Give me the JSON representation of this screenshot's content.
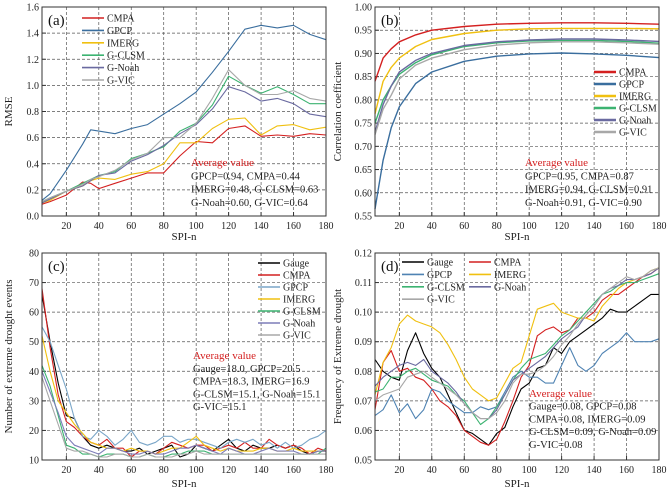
{
  "colors": {
    "Gauge": "#000000",
    "CMPA": "#d42020",
    "GPCP": "#3a6e9e",
    "IMERG": "#f0c010",
    "G-CLSM": "#3cb371",
    "G-Noah": "#6a6aa0",
    "G-VIC": "#a8a8a8",
    "annotation_title": "#d42020"
  },
  "chart_data": [
    {
      "id": "a",
      "type": "line",
      "panel_label": "(a)",
      "xlabel": "SPI-n",
      "ylabel": "RMSE",
      "xlim": [
        5,
        180
      ],
      "ylim": [
        0,
        1.6
      ],
      "xticks": [
        "20",
        "40",
        "60",
        "80",
        "100",
        "120",
        "140",
        "160",
        "180"
      ],
      "yticks": [
        "0.0",
        "0.2",
        "0.4",
        "0.6",
        "0.8",
        "1.0",
        "1.2",
        "1.4",
        "1.6"
      ],
      "grid": true,
      "legend": "top-left",
      "annotation": {
        "title": "Average value",
        "lines": [
          "GPCP=0.94, CMPA=0.44",
          "IMERG=0.48, G-CLSM=0.63",
          "G-Noah=0.60, G-VIC=0.64"
        ]
      },
      "x": [
        5,
        10,
        20,
        30,
        35,
        40,
        50,
        60,
        70,
        80,
        90,
        100,
        110,
        120,
        130,
        140,
        150,
        160,
        170,
        180
      ],
      "series": [
        {
          "name": "CMPA",
          "values": [
            0.09,
            0.11,
            0.16,
            0.26,
            0.25,
            0.21,
            0.25,
            0.29,
            0.33,
            0.33,
            0.46,
            0.57,
            0.56,
            0.67,
            0.69,
            0.61,
            0.62,
            0.61,
            0.63,
            0.62
          ]
        },
        {
          "name": "GPCP",
          "values": [
            0.12,
            0.17,
            0.35,
            0.55,
            0.66,
            0.65,
            0.63,
            0.67,
            0.7,
            0.78,
            0.86,
            0.95,
            1.1,
            1.26,
            1.43,
            1.46,
            1.44,
            1.46,
            1.39,
            1.35
          ]
        },
        {
          "name": "IMERG",
          "values": [
            0.1,
            0.12,
            0.19,
            0.23,
            0.27,
            0.29,
            0.28,
            0.32,
            0.34,
            0.4,
            0.56,
            0.56,
            0.67,
            0.74,
            0.75,
            0.62,
            0.69,
            0.7,
            0.66,
            0.68
          ]
        },
        {
          "name": "G-CLSM",
          "values": [
            0.11,
            0.14,
            0.19,
            0.25,
            0.28,
            0.31,
            0.34,
            0.44,
            0.48,
            0.53,
            0.65,
            0.71,
            0.85,
            1.07,
            1.0,
            0.94,
            0.99,
            0.93,
            0.86,
            0.86
          ]
        },
        {
          "name": "G-Noah",
          "values": [
            0.1,
            0.13,
            0.19,
            0.23,
            0.27,
            0.31,
            0.33,
            0.42,
            0.47,
            0.54,
            0.63,
            0.7,
            0.82,
            0.99,
            0.95,
            0.88,
            0.9,
            0.86,
            0.78,
            0.76
          ]
        },
        {
          "name": "G-VIC",
          "values": [
            0.11,
            0.14,
            0.19,
            0.24,
            0.28,
            0.3,
            0.35,
            0.43,
            0.48,
            0.6,
            0.6,
            0.71,
            0.9,
            1.12,
            1.0,
            0.93,
            0.93,
            0.96,
            0.9,
            0.88
          ]
        }
      ]
    },
    {
      "id": "b",
      "type": "line",
      "panel_label": "(b)",
      "xlabel": "SPI-n",
      "ylabel": "Correlation coefficient",
      "xlim": [
        5,
        180
      ],
      "ylim": [
        0.55,
        1.0
      ],
      "xticks": [
        "20",
        "40",
        "60",
        "80",
        "100",
        "120",
        "140",
        "160",
        "180"
      ],
      "yticks": [
        "0.55",
        "0.60",
        "0.65",
        "0.70",
        "0.75",
        "0.80",
        "0.85",
        "0.90",
        "0.95",
        "1.00"
      ],
      "grid": true,
      "legend": "right",
      "annotation": {
        "title": "Average value",
        "lines": [
          "GPCP=0.95, CMPA=0.87",
          "IMERG=0.94, G-CLSM=0.91",
          "G-Noah=0.91, G-VIC=0.90"
        ]
      },
      "x": [
        5,
        10,
        15,
        20,
        30,
        40,
        60,
        80,
        100,
        120,
        140,
        160,
        180
      ],
      "series": [
        {
          "name": "CMPA",
          "values": [
            0.84,
            0.89,
            0.91,
            0.925,
            0.94,
            0.95,
            0.958,
            0.963,
            0.965,
            0.966,
            0.966,
            0.965,
            0.963
          ]
        },
        {
          "name": "GPCP",
          "values": [
            0.565,
            0.67,
            0.74,
            0.785,
            0.835,
            0.86,
            0.883,
            0.894,
            0.899,
            0.901,
            0.899,
            0.896,
            0.891
          ]
        },
        {
          "name": "IMERG",
          "values": [
            0.77,
            0.84,
            0.87,
            0.89,
            0.915,
            0.93,
            0.943,
            0.95,
            0.953,
            0.954,
            0.954,
            0.954,
            0.953
          ]
        },
        {
          "name": "G-CLSM",
          "values": [
            0.75,
            0.8,
            0.83,
            0.855,
            0.88,
            0.897,
            0.915,
            0.923,
            0.927,
            0.928,
            0.928,
            0.926,
            0.922
          ]
        },
        {
          "name": "G-Noah",
          "values": [
            0.73,
            0.79,
            0.83,
            0.86,
            0.885,
            0.9,
            0.917,
            0.925,
            0.929,
            0.931,
            0.931,
            0.929,
            0.926
          ]
        },
        {
          "name": "G-VIC",
          "values": [
            0.725,
            0.78,
            0.81,
            0.845,
            0.875,
            0.89,
            0.908,
            0.918,
            0.923,
            0.925,
            0.925,
            0.923,
            0.92
          ]
        }
      ]
    },
    {
      "id": "c",
      "type": "line",
      "panel_label": "(c)",
      "xlabel": "SPI-n",
      "ylabel": "Number of extreme drought events",
      "xlim": [
        5,
        180
      ],
      "ylim": [
        10,
        80
      ],
      "xticks": [
        "20",
        "40",
        "60",
        "80",
        "100",
        "120",
        "140",
        "160",
        "180"
      ],
      "yticks": [
        "10",
        "20",
        "30",
        "40",
        "50",
        "60",
        "70",
        "80"
      ],
      "grid": true,
      "legend": "top-right",
      "annotation": {
        "title": "Average value",
        "lines": [
          "Gauge=18.0, GPCP=20.5",
          "CMPA=18.3, IMERG=16.9",
          "G-CLSM=15.1, G-Noah=15.1",
          "G-VIC=15.1"
        ]
      },
      "x": [
        5,
        10,
        15,
        20,
        25,
        30,
        35,
        40,
        45,
        50,
        55,
        60,
        65,
        70,
        75,
        80,
        85,
        90,
        95,
        100,
        105,
        110,
        115,
        120,
        125,
        130,
        135,
        140,
        145,
        150,
        155,
        160,
        165,
        170,
        175,
        180
      ],
      "series": [
        {
          "name": "Gauge",
          "values": [
            66,
            50,
            36,
            25,
            24,
            18,
            15,
            14,
            15,
            14,
            13,
            13,
            14,
            12,
            13,
            14,
            15,
            11,
            12,
            15,
            14,
            13,
            15,
            17,
            14,
            13,
            15,
            14,
            14,
            15,
            14,
            15,
            13,
            12,
            13,
            13
          ]
        },
        {
          "name": "CMPA",
          "values": [
            68,
            48,
            32,
            23,
            21,
            18,
            16,
            15,
            17,
            14,
            14,
            11,
            13,
            13,
            12,
            14,
            16,
            15,
            14,
            15,
            15,
            13,
            14,
            15,
            14,
            16,
            14,
            14,
            17,
            15,
            14,
            15,
            14,
            12,
            14,
            13
          ]
        },
        {
          "name": "GPCP",
          "values": [
            55,
            50,
            42,
            34,
            24,
            18,
            17,
            20,
            18,
            15,
            17,
            20,
            16,
            15,
            16,
            18,
            18,
            16,
            17,
            17,
            16,
            15,
            14,
            16,
            17,
            16,
            17,
            15,
            16,
            14,
            16,
            14,
            15,
            17,
            18,
            20
          ]
        },
        {
          "name": "IMERG",
          "values": [
            52,
            40,
            30,
            26,
            22,
            19,
            16,
            15,
            14,
            14,
            13,
            14,
            13,
            13,
            12,
            13,
            14,
            14,
            16,
            18,
            15,
            14,
            13,
            14,
            13,
            13,
            13,
            14,
            14,
            13,
            13,
            14,
            13,
            13,
            13,
            13
          ]
        },
        {
          "name": "G-CLSM",
          "values": [
            42,
            35,
            25,
            15,
            14,
            12,
            12,
            11,
            12,
            12,
            12,
            11,
            11,
            12,
            11,
            11,
            12,
            12,
            13,
            13,
            13,
            12,
            12,
            12,
            12,
            12,
            12,
            12,
            12,
            12,
            12,
            12,
            12,
            12,
            12,
            14
          ]
        },
        {
          "name": "G-Noah",
          "values": [
            40,
            33,
            26,
            18,
            15,
            14,
            13,
            12,
            14,
            14,
            13,
            12,
            12,
            13,
            12,
            12,
            13,
            14,
            14,
            15,
            14,
            13,
            12,
            14,
            13,
            12,
            12,
            13,
            14,
            13,
            13,
            13,
            12,
            12,
            13,
            13
          ]
        },
        {
          "name": "G-VIC",
          "values": [
            38,
            30,
            22,
            14,
            13,
            13,
            12,
            11,
            11,
            12,
            12,
            11,
            11,
            12,
            11,
            11,
            11,
            12,
            12,
            13,
            12,
            12,
            12,
            12,
            12,
            12,
            12,
            12,
            12,
            12,
            12,
            12,
            12,
            12,
            12,
            12
          ]
        }
      ]
    },
    {
      "id": "d",
      "type": "line",
      "panel_label": "(d)",
      "xlabel": "SPI-n",
      "ylabel": "Frequency of Extreme drought",
      "xlim": [
        5,
        180
      ],
      "ylim": [
        0.05,
        0.12
      ],
      "xticks": [
        "20",
        "40",
        "60",
        "80",
        "100",
        "120",
        "140",
        "160",
        "180"
      ],
      "yticks": [
        "0.05",
        "0.06",
        "0.07",
        "0.08",
        "0.09",
        "0.10",
        "0.11",
        "0.12"
      ],
      "grid": true,
      "legend": "top-left",
      "annotation": {
        "title": "Average value",
        "lines": [
          "Gauge=0.08, GPCP=0.08",
          "CMPA=0.08, IMERG=0.09",
          "G-CLSM=0.09, G-Noah=0.09",
          "G-VIC=0.08"
        ]
      },
      "x": [
        5,
        10,
        15,
        20,
        25,
        30,
        35,
        40,
        45,
        50,
        55,
        60,
        65,
        70,
        75,
        80,
        85,
        90,
        95,
        100,
        105,
        110,
        115,
        120,
        125,
        130,
        135,
        140,
        145,
        150,
        155,
        160,
        165,
        170,
        175,
        180
      ],
      "series": [
        {
          "name": "Gauge",
          "values": [
            0.084,
            0.08,
            0.078,
            0.077,
            0.087,
            0.093,
            0.086,
            0.081,
            0.078,
            0.072,
            0.066,
            0.06,
            0.059,
            0.057,
            0.055,
            0.059,
            0.061,
            0.068,
            0.074,
            0.076,
            0.081,
            0.082,
            0.088,
            0.086,
            0.09,
            0.092,
            0.094,
            0.096,
            0.098,
            0.101,
            0.1,
            0.1,
            0.102,
            0.104,
            0.106,
            0.106
          ]
        },
        {
          "name": "CMPA",
          "values": [
            0.067,
            0.083,
            0.087,
            0.08,
            0.081,
            0.078,
            0.077,
            0.074,
            0.07,
            0.068,
            0.065,
            0.06,
            0.058,
            0.056,
            0.055,
            0.057,
            0.063,
            0.07,
            0.078,
            0.082,
            0.092,
            0.094,
            0.095,
            0.093,
            0.094,
            0.098,
            0.098,
            0.1,
            0.104,
            0.106,
            0.106,
            0.108,
            0.11,
            0.112,
            0.113,
            0.115
          ]
        },
        {
          "name": "GPCP",
          "values": [
            0.065,
            0.067,
            0.072,
            0.066,
            0.069,
            0.064,
            0.067,
            0.074,
            0.073,
            0.07,
            0.068,
            0.066,
            0.066,
            0.068,
            0.067,
            0.068,
            0.073,
            0.078,
            0.08,
            0.078,
            0.078,
            0.076,
            0.076,
            0.082,
            0.088,
            0.082,
            0.08,
            0.082,
            0.086,
            0.088,
            0.09,
            0.093,
            0.09,
            0.09,
            0.09,
            0.091
          ]
        },
        {
          "name": "IMERG",
          "values": [
            0.072,
            0.083,
            0.088,
            0.096,
            0.099,
            0.097,
            0.096,
            0.095,
            0.093,
            0.089,
            0.084,
            0.078,
            0.074,
            0.072,
            0.07,
            0.071,
            0.076,
            0.081,
            0.083,
            0.092,
            0.101,
            0.102,
            0.103,
            0.1,
            0.099,
            0.098,
            0.098,
            0.097,
            0.102,
            0.105,
            0.108,
            0.11,
            0.111,
            0.112,
            0.114,
            0.115
          ]
        },
        {
          "name": "G-CLSM",
          "values": [
            0.073,
            0.074,
            0.078,
            0.078,
            0.08,
            0.081,
            0.079,
            0.077,
            0.076,
            0.075,
            0.072,
            0.07,
            0.066,
            0.062,
            0.064,
            0.068,
            0.072,
            0.077,
            0.081,
            0.084,
            0.085,
            0.086,
            0.089,
            0.092,
            0.094,
            0.097,
            0.1,
            0.103,
            0.106,
            0.107,
            0.109,
            0.11,
            0.11,
            0.111,
            0.112,
            0.113
          ]
        },
        {
          "name": "G-Noah",
          "values": [
            0.075,
            0.078,
            0.08,
            0.082,
            0.083,
            0.082,
            0.084,
            0.08,
            0.078,
            0.076,
            0.073,
            0.069,
            0.066,
            0.064,
            0.064,
            0.067,
            0.072,
            0.077,
            0.079,
            0.081,
            0.083,
            0.085,
            0.088,
            0.091,
            0.093,
            0.095,
            0.099,
            0.102,
            0.106,
            0.108,
            0.109,
            0.111,
            0.111,
            0.112,
            0.113,
            0.115
          ]
        },
        {
          "name": "G-VIC",
          "values": [
            0.07,
            0.072,
            0.073,
            0.074,
            0.078,
            0.079,
            0.08,
            0.078,
            0.076,
            0.074,
            0.072,
            0.069,
            0.066,
            0.064,
            0.064,
            0.066,
            0.07,
            0.076,
            0.079,
            0.079,
            0.08,
            0.082,
            0.085,
            0.089,
            0.092,
            0.096,
            0.099,
            0.102,
            0.106,
            0.108,
            0.11,
            0.112,
            0.111,
            0.112,
            0.114,
            0.115
          ]
        }
      ]
    }
  ]
}
